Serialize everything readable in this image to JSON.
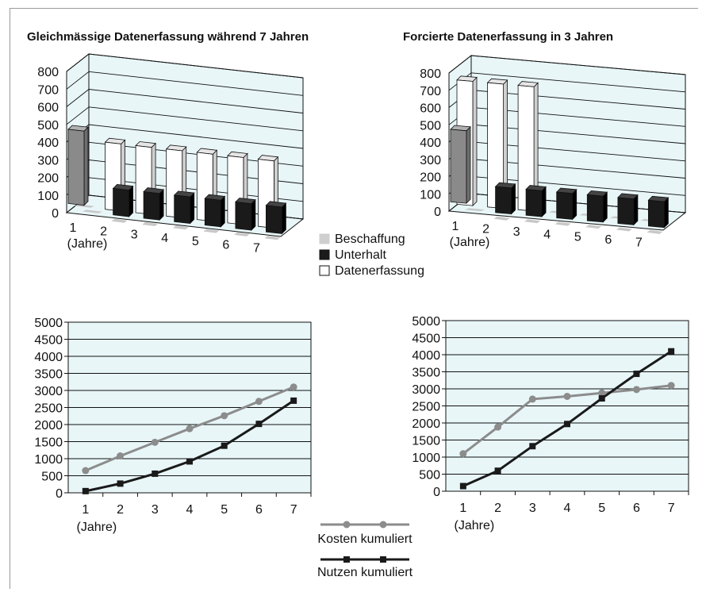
{
  "colors": {
    "plot_bg": "#e8f6f8",
    "beschaffung": "#8a8a8a",
    "unterhalt": "#1a1a1a",
    "datenerfassung": "#ffffff",
    "kosten_line": "#8c8c8c",
    "nutzen_line": "#1a1a1a"
  },
  "legend_bar": [
    "Beschaffung",
    "Unterhalt",
    "Datenerfassung"
  ],
  "legend_line": [
    "Kosten kumuliert",
    "Nutzen kumuliert"
  ],
  "chart_data": [
    {
      "type": "bar",
      "title": "Gleichmässige Datenerfassung während 7 Jahren",
      "categories": [
        "1",
        "2",
        "3",
        "4",
        "5",
        "6",
        "7"
      ],
      "xunit": "(Jahre)",
      "ylim": [
        0,
        800
      ],
      "yticks": [
        "0",
        "100",
        "200",
        "300",
        "400",
        "500",
        "600",
        "700",
        "800"
      ],
      "series": [
        {
          "name": "Beschaffung",
          "values": [
            420,
            0,
            0,
            0,
            0,
            0,
            0
          ]
        },
        {
          "name": "Unterhalt",
          "values": [
            0,
            150,
            150,
            150,
            150,
            150,
            150
          ]
        },
        {
          "name": "Datenerfassung",
          "values": [
            0,
            380,
            380,
            380,
            380,
            380,
            380
          ]
        }
      ]
    },
    {
      "type": "bar",
      "title": "Forcierte Datenerfassung in 3 Jahren",
      "categories": [
        "1",
        "2",
        "3",
        "4",
        "5",
        "6",
        "7"
      ],
      "xunit": "(Jahre)",
      "ylim": [
        0,
        800
      ],
      "yticks": [
        "0",
        "100",
        "200",
        "300",
        "400",
        "500",
        "600",
        "700",
        "800"
      ],
      "series": [
        {
          "name": "Beschaffung",
          "values": [
            420,
            0,
            0,
            0,
            0,
            0,
            0
          ]
        },
        {
          "name": "Unterhalt",
          "values": [
            0,
            150,
            150,
            150,
            150,
            150,
            150
          ]
        },
        {
          "name": "Datenerfassung",
          "values": [
            720,
            720,
            720,
            0,
            0,
            0,
            0
          ]
        }
      ]
    },
    {
      "type": "line",
      "x": [
        "1",
        "2",
        "3",
        "4",
        "5",
        "6",
        "7"
      ],
      "xunit": "(Jahre)",
      "ylim": [
        0,
        5000
      ],
      "yticks": [
        "0",
        "500",
        "1000",
        "1500",
        "2000",
        "2500",
        "3000",
        "3500",
        "4000",
        "4500",
        "5000"
      ],
      "series": [
        {
          "name": "Kosten kumuliert",
          "values": [
            650,
            1080,
            1480,
            1880,
            2260,
            2680,
            3100
          ]
        },
        {
          "name": "Nutzen kumuliert",
          "values": [
            50,
            270,
            560,
            920,
            1380,
            2020,
            2700
          ]
        }
      ]
    },
    {
      "type": "line",
      "x": [
        "1",
        "2",
        "3",
        "4",
        "5",
        "6",
        "7"
      ],
      "xunit": "(Jahre)",
      "ylim": [
        0,
        5000
      ],
      "yticks": [
        "0",
        "500",
        "1000",
        "1500",
        "2000",
        "2500",
        "3000",
        "3500",
        "4000",
        "4500",
        "5000"
      ],
      "series": [
        {
          "name": "Kosten kumuliert",
          "values": [
            1100,
            1880,
            2700,
            2780,
            2880,
            2980,
            3100
          ]
        },
        {
          "name": "Nutzen kumuliert",
          "values": [
            150,
            600,
            1320,
            1970,
            2720,
            3440,
            4100
          ]
        }
      ]
    }
  ]
}
